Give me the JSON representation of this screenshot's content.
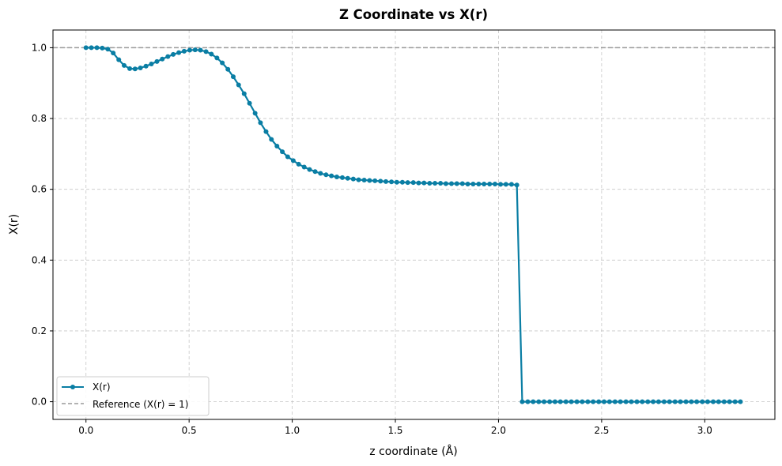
{
  "chart_data": {
    "type": "line",
    "title": "Z Coordinate vs X(r)",
    "xlabel": "z coordinate (Å)",
    "ylabel": "X(r)",
    "xlim": [
      -0.16,
      3.34
    ],
    "ylim": [
      -0.05,
      1.05
    ],
    "xticks": [
      0.0,
      0.5,
      1.0,
      1.5,
      2.0,
      2.5,
      3.0
    ],
    "yticks": [
      0.0,
      0.2,
      0.4,
      0.6,
      0.8,
      1.0
    ],
    "xtick_labels": [
      "0.0",
      "0.5",
      "1.0",
      "1.5",
      "2.0",
      "2.5",
      "3.0"
    ],
    "ytick_labels": [
      "0.0",
      "0.2",
      "0.4",
      "0.6",
      "0.8",
      "1.0"
    ],
    "grid": true,
    "legend_position": "lower-left",
    "reference_line": {
      "y": 1.0,
      "label": "Reference (X(r) = 1)",
      "color": "#999999",
      "style": "dashed"
    },
    "series": [
      {
        "name": "X(r)",
        "color": "#0a7ea4",
        "marker": "circle",
        "x": [
          0.0,
          0.026,
          0.053,
          0.079,
          0.106,
          0.132,
          0.159,
          0.185,
          0.212,
          0.238,
          0.264,
          0.291,
          0.317,
          0.344,
          0.37,
          0.397,
          0.423,
          0.45,
          0.476,
          0.503,
          0.529,
          0.555,
          0.582,
          0.608,
          0.635,
          0.661,
          0.688,
          0.714,
          0.74,
          0.767,
          0.793,
          0.82,
          0.846,
          0.873,
          0.899,
          0.926,
          0.952,
          0.978,
          1.005,
          1.031,
          1.058,
          1.084,
          1.111,
          1.137,
          1.164,
          1.19,
          1.216,
          1.243,
          1.269,
          1.296,
          1.322,
          1.349,
          1.375,
          1.401,
          1.428,
          1.454,
          1.481,
          1.507,
          1.534,
          1.56,
          1.587,
          1.613,
          1.639,
          1.666,
          1.692,
          1.719,
          1.745,
          1.772,
          1.798,
          1.825,
          1.851,
          1.877,
          1.904,
          1.93,
          1.957,
          1.983,
          2.01,
          2.036,
          2.063,
          2.089,
          2.115,
          2.142,
          2.168,
          2.195,
          2.221,
          2.248,
          2.274,
          2.3,
          2.327,
          2.353,
          2.38,
          2.406,
          2.433,
          2.459,
          2.486,
          2.512,
          2.538,
          2.565,
          2.591,
          2.618,
          2.644,
          2.671,
          2.697,
          2.724,
          2.75,
          2.776,
          2.803,
          2.829,
          2.856,
          2.882,
          2.909,
          2.935,
          2.961,
          2.988,
          3.014,
          3.041,
          3.067,
          3.094,
          3.12,
          3.147,
          3.173
        ],
        "y": [
          1.0,
          1.0,
          1.0,
          0.999,
          0.996,
          0.985,
          0.966,
          0.95,
          0.941,
          0.94,
          0.943,
          0.948,
          0.954,
          0.961,
          0.968,
          0.975,
          0.981,
          0.986,
          0.99,
          0.993,
          0.994,
          0.993,
          0.989,
          0.982,
          0.971,
          0.957,
          0.939,
          0.918,
          0.895,
          0.87,
          0.843,
          0.815,
          0.788,
          0.763,
          0.741,
          0.722,
          0.706,
          0.692,
          0.681,
          0.671,
          0.663,
          0.656,
          0.65,
          0.645,
          0.641,
          0.638,
          0.635,
          0.633,
          0.631,
          0.629,
          0.627,
          0.626,
          0.625,
          0.624,
          0.623,
          0.622,
          0.621,
          0.62,
          0.62,
          0.619,
          0.619,
          0.618,
          0.618,
          0.617,
          0.617,
          0.617,
          0.616,
          0.616,
          0.616,
          0.616,
          0.615,
          0.615,
          0.615,
          0.615,
          0.615,
          0.615,
          0.614,
          0.614,
          0.614,
          0.612,
          0.0,
          0.0,
          0.0,
          0.0,
          0.0,
          0.0,
          0.0,
          0.0,
          0.0,
          0.0,
          0.0,
          0.0,
          0.0,
          0.0,
          0.0,
          0.0,
          0.0,
          0.0,
          0.0,
          0.0,
          0.0,
          0.0,
          0.0,
          0.0,
          0.0,
          0.0,
          0.0,
          0.0,
          0.0,
          0.0,
          0.0,
          0.0,
          0.0,
          0.0,
          0.0,
          0.0,
          0.0,
          0.0,
          0.0,
          0.0,
          0.0
        ]
      }
    ]
  }
}
